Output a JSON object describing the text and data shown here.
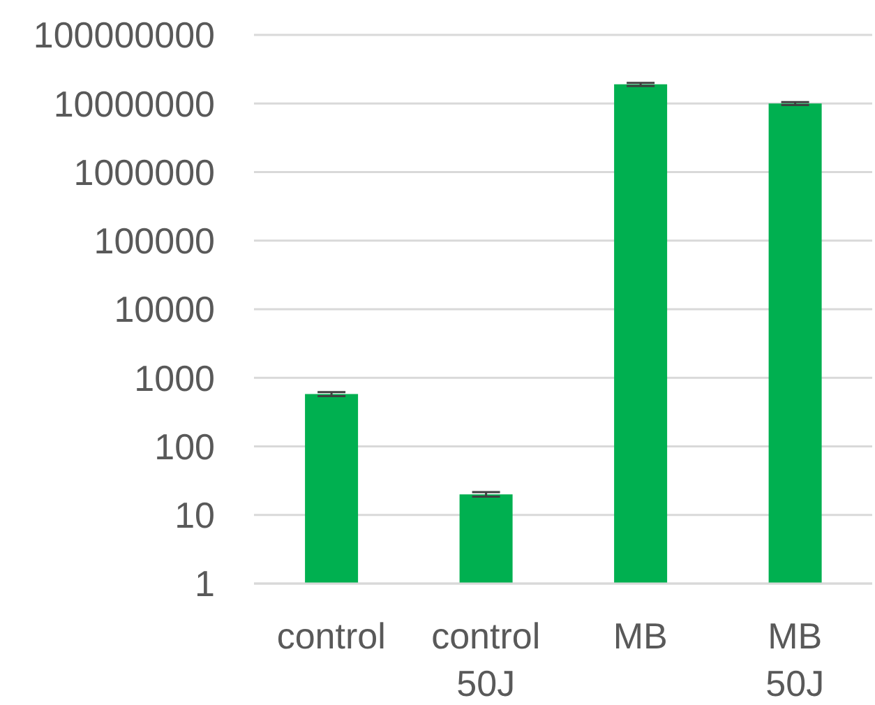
{
  "chart_data": {
    "type": "bar",
    "categories": [
      "control",
      "control 50J",
      "MB",
      "MB 50J"
    ],
    "values": [
      580,
      20,
      19000000,
      10000000
    ],
    "errors": [
      40,
      1.5,
      1000000,
      500000
    ],
    "color": "#00b050",
    "log": true,
    "ylim": [
      1,
      100000000
    ],
    "yticks": [
      1,
      10,
      100,
      1000,
      10000,
      100000,
      1000000,
      10000000,
      100000000
    ],
    "grid": "y"
  }
}
